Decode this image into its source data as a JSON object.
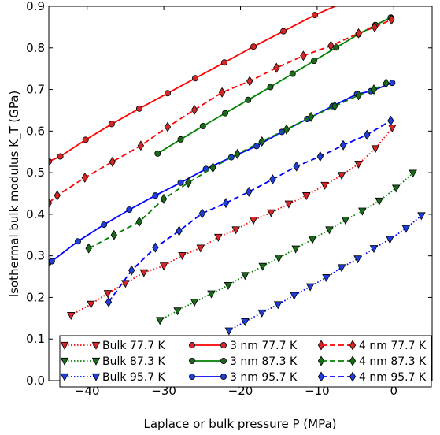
{
  "chart_data": {
    "type": "line",
    "title": "",
    "xlabel": "Laplace or bulk pressure P (MPa)",
    "ylabel": "Isothermal bulk modulus K_T (GPa)",
    "xlim": [
      -45,
      5
    ],
    "ylim": [
      0.0,
      0.9
    ],
    "xticks": [
      -40,
      -30,
      -20,
      -10,
      0
    ],
    "xtick_labels": [
      "−40",
      "−30",
      "−20",
      "−10",
      "0"
    ],
    "yticks": [
      0.0,
      0.1,
      0.2,
      0.3,
      0.4,
      0.5,
      0.6,
      0.7,
      0.8,
      0.9
    ],
    "ytick_labels": [
      "0.0",
      "0.1",
      "0.2",
      "0.3",
      "0.4",
      "0.5",
      "0.6",
      "0.7",
      "0.8",
      "0.9"
    ],
    "grid": false,
    "legend": {
      "placement": "bottom-center",
      "columns": 3
    },
    "colors": {
      "red": "#ff0000",
      "green": "#008000",
      "blue": "#0000ff",
      "marker_red": "#d62728",
      "marker_green": "#1a6b1a",
      "marker_blue": "#1f3fd6"
    },
    "series": [
      {
        "name": "Bulk 77.7 K",
        "color": "red",
        "line": "dotted",
        "marker": "tri-down",
        "x": [
          -42.1,
          -39.5,
          -37.3,
          -35.0,
          -32.6,
          -30.0,
          -27.6,
          -25.2,
          -22.9,
          -20.6,
          -18.3,
          -16.0,
          -13.7,
          -11.4,
          -9.0,
          -6.8,
          -4.6,
          -2.4,
          -0.2
        ],
        "y": [
          0.157,
          0.184,
          0.21,
          0.234,
          0.26,
          0.276,
          0.301,
          0.319,
          0.345,
          0.363,
          0.386,
          0.404,
          0.425,
          0.445,
          0.47,
          0.494,
          0.521,
          0.558,
          0.608
        ]
      },
      {
        "name": "Bulk 87.3 K",
        "color": "green",
        "line": "dotted",
        "marker": "tri-down",
        "x": [
          -30.5,
          -28.2,
          -26.0,
          -23.8,
          -21.6,
          -19.4,
          -17.1,
          -15.0,
          -12.8,
          -10.6,
          -8.4,
          -6.3,
          -4.1,
          -1.9,
          0.3,
          2.5
        ],
        "y": [
          0.145,
          0.168,
          0.189,
          0.209,
          0.229,
          0.253,
          0.275,
          0.295,
          0.317,
          0.34,
          0.363,
          0.386,
          0.408,
          0.432,
          0.463,
          0.499
        ]
      },
      {
        "name": "Bulk 95.7 K",
        "color": "blue",
        "line": "dotted",
        "marker": "tri-down",
        "x": [
          -21.5,
          -19.4,
          -17.2,
          -15.1,
          -13.0,
          -10.9,
          -8.8,
          -6.8,
          -4.7,
          -2.6,
          -0.5,
          1.6,
          3.6
        ],
        "y": [
          0.12,
          0.142,
          0.163,
          0.183,
          0.205,
          0.226,
          0.248,
          0.272,
          0.293,
          0.318,
          0.34,
          0.366,
          0.397
        ]
      },
      {
        "name": "3 nm 77.7 K",
        "color": "red",
        "line": "solid",
        "marker": "circle",
        "x": [
          -45,
          -43.5,
          -40.2,
          -36.8,
          -33.2,
          -29.5,
          -25.9,
          -22.1,
          -18.3,
          -14.4,
          -10.3,
          -6.8
        ],
        "y": [
          0.527,
          0.539,
          0.579,
          0.617,
          0.654,
          0.691,
          0.727,
          0.765,
          0.803,
          0.84,
          0.879,
          0.907
        ]
      },
      {
        "name": "3 nm 87.3 K",
        "color": "green",
        "line": "solid",
        "marker": "circle",
        "x": [
          -30.8,
          -27.8,
          -24.9,
          -22.0,
          -19.0,
          -16.1,
          -13.2,
          -10.4,
          -7.5,
          -4.6,
          -2.4,
          -0.4
        ],
        "y": [
          0.546,
          0.58,
          0.612,
          0.643,
          0.675,
          0.706,
          0.738,
          0.769,
          0.801,
          0.833,
          0.855,
          0.873
        ]
      },
      {
        "name": "3 nm 95.7 K",
        "color": "blue",
        "line": "solid",
        "marker": "circle",
        "x": [
          -45,
          -44.6,
          -41.2,
          -37.8,
          -34.5,
          -31.1,
          -27.8,
          -24.5,
          -21.2,
          -17.9,
          -14.6,
          -11.3,
          -8.0,
          -4.8,
          -3.0,
          -0.2
        ],
        "y": [
          0.284,
          0.287,
          0.335,
          0.375,
          0.411,
          0.445,
          0.476,
          0.509,
          0.537,
          0.564,
          0.598,
          0.629,
          0.66,
          0.689,
          0.696,
          0.716
        ]
      },
      {
        "name": "4 nm 77.7 K",
        "color": "red",
        "line": "dashed",
        "marker": "diamond",
        "x": [
          -45,
          -43.9,
          -40.3,
          -36.7,
          -33.0,
          -29.5,
          -26.0,
          -22.4,
          -18.8,
          -15.3,
          -11.8,
          -8.2,
          -4.6,
          -2.5,
          -0.3
        ],
        "y": [
          0.427,
          0.445,
          0.488,
          0.526,
          0.565,
          0.61,
          0.651,
          0.693,
          0.72,
          0.752,
          0.781,
          0.805,
          0.835,
          0.85,
          0.868
        ]
      },
      {
        "name": "4 nm 87.3 K",
        "color": "green",
        "line": "dashed",
        "marker": "diamond",
        "x": [
          -39.8,
          -36.5,
          -33.2,
          -30.0,
          -26.8,
          -23.6,
          -20.4,
          -17.2,
          -14.0,
          -10.8,
          -7.7,
          -4.6,
          -2.6,
          -1.0
        ],
        "y": [
          0.318,
          0.35,
          0.382,
          0.437,
          0.476,
          0.512,
          0.545,
          0.575,
          0.604,
          0.634,
          0.66,
          0.686,
          0.7,
          0.715
        ]
      },
      {
        "name": "4 nm 95.7 K",
        "color": "blue",
        "line": "dashed",
        "marker": "diamond",
        "x": [
          -37.2,
          -34.2,
          -31.1,
          -28.0,
          -25.0,
          -21.9,
          -18.9,
          -15.8,
          -12.7,
          -9.6,
          -6.6,
          -3.5,
          -0.4
        ],
        "y": [
          0.189,
          0.265,
          0.32,
          0.36,
          0.402,
          0.427,
          0.454,
          0.484,
          0.515,
          0.539,
          0.566,
          0.591,
          0.625
        ]
      }
    ]
  }
}
